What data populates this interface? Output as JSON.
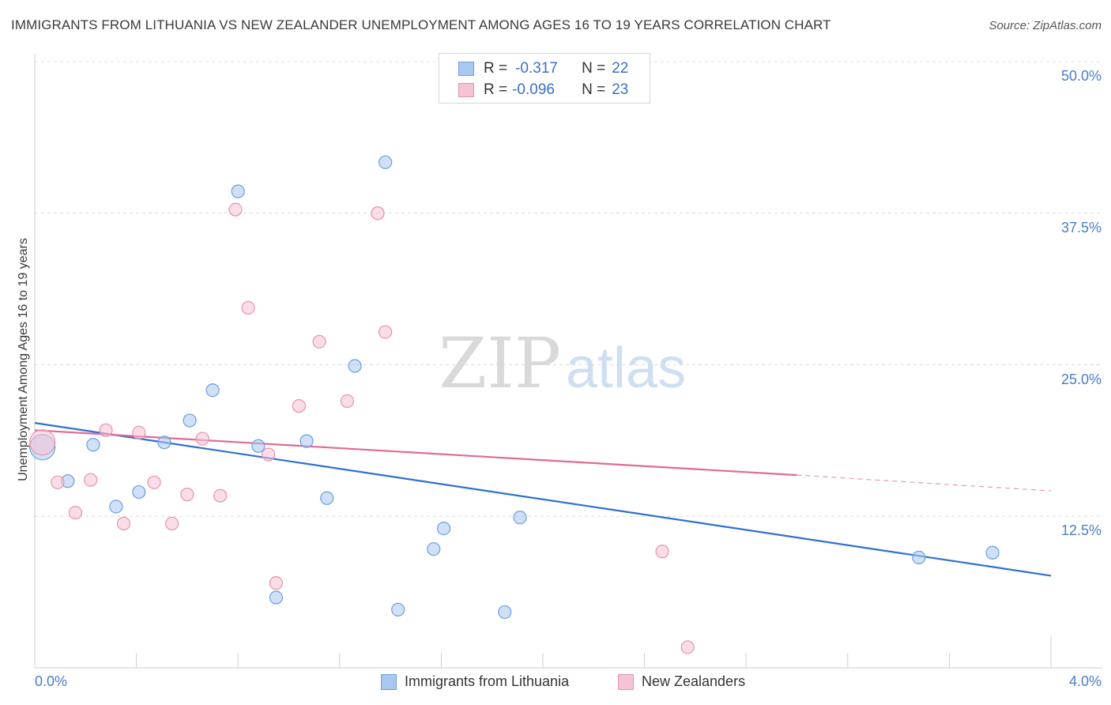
{
  "chart_data": {
    "type": "scatter",
    "title": "IMMIGRANTS FROM LITHUANIA VS NEW ZEALANDER UNEMPLOYMENT AMONG AGES 16 TO 19 YEARS CORRELATION CHART",
    "source": "Source: ZipAtlas.com",
    "ylabel": "Unemployment Among Ages 16 to 19 years",
    "xlabel": "",
    "xlim": [
      0,
      4.0
    ],
    "ylim": [
      0,
      50
    ],
    "y_ticks": [
      {
        "value": 12.5,
        "label": "12.5%"
      },
      {
        "value": 25.0,
        "label": "25.0%"
      },
      {
        "value": 37.5,
        "label": "37.5%"
      },
      {
        "value": 50.0,
        "label": "50.0%"
      }
    ],
    "x_tick_labels": {
      "min": "0.0%",
      "max": "4.0%"
    },
    "x_minor_ticks": [
      0.4,
      0.8,
      1.2,
      1.6,
      2.0,
      2.4,
      2.8,
      3.2,
      3.6
    ],
    "grid": true,
    "watermark": {
      "a": "ZIP",
      "b": "atlas"
    },
    "series": [
      {
        "name": "Immigrants from Lithuania",
        "color": "#a9c8f0",
        "stroke": "#6a9ee0",
        "line_color": "#2f6fd0",
        "r_label": "R =",
        "r_value": "-0.317",
        "n_label": "N =",
        "n_value": "22",
        "trend": {
          "x0": 0.0,
          "y0": 20.2,
          "x1": 4.0,
          "y1": 7.6
        },
        "points": [
          {
            "x": 0.03,
            "y": 18.2,
            "big": true
          },
          {
            "x": 0.13,
            "y": 15.4
          },
          {
            "x": 0.23,
            "y": 18.4
          },
          {
            "x": 0.32,
            "y": 13.3
          },
          {
            "x": 0.41,
            "y": 14.5
          },
          {
            "x": 0.51,
            "y": 18.6
          },
          {
            "x": 0.61,
            "y": 20.4
          },
          {
            "x": 0.7,
            "y": 22.9
          },
          {
            "x": 0.8,
            "y": 39.3
          },
          {
            "x": 0.88,
            "y": 18.3
          },
          {
            "x": 0.95,
            "y": 5.8
          },
          {
            "x": 1.07,
            "y": 18.7
          },
          {
            "x": 1.15,
            "y": 14.0
          },
          {
            "x": 1.26,
            "y": 24.9
          },
          {
            "x": 1.38,
            "y": 41.7
          },
          {
            "x": 1.43,
            "y": 4.8
          },
          {
            "x": 1.57,
            "y": 9.8
          },
          {
            "x": 1.61,
            "y": 11.5
          },
          {
            "x": 1.85,
            "y": 4.6
          },
          {
            "x": 1.91,
            "y": 12.4
          },
          {
            "x": 3.48,
            "y": 9.1
          },
          {
            "x": 3.77,
            "y": 9.5
          }
        ]
      },
      {
        "name": "New Zealanders",
        "color": "#f6c3d3",
        "stroke": "#e891ad",
        "line_color": "#e06a95",
        "r_label": "R =",
        "r_value": "-0.096",
        "n_label": "N =",
        "n_value": "23",
        "trend": {
          "x0": 0.0,
          "y0": 19.6,
          "x1": 3.0,
          "y1": 15.9
        },
        "trend_dashed_to": {
          "x": 4.0,
          "y": 14.6
        },
        "points": [
          {
            "x": 0.03,
            "y": 18.6,
            "big": true
          },
          {
            "x": 0.09,
            "y": 15.3
          },
          {
            "x": 0.16,
            "y": 12.8
          },
          {
            "x": 0.22,
            "y": 15.5
          },
          {
            "x": 0.28,
            "y": 19.6
          },
          {
            "x": 0.35,
            "y": 11.9
          },
          {
            "x": 0.41,
            "y": 19.4
          },
          {
            "x": 0.47,
            "y": 15.3
          },
          {
            "x": 0.54,
            "y": 11.9
          },
          {
            "x": 0.6,
            "y": 14.3
          },
          {
            "x": 0.66,
            "y": 18.9
          },
          {
            "x": 0.73,
            "y": 14.2
          },
          {
            "x": 0.79,
            "y": 37.8
          },
          {
            "x": 0.84,
            "y": 29.7
          },
          {
            "x": 0.92,
            "y": 17.6
          },
          {
            "x": 0.95,
            "y": 7.0
          },
          {
            "x": 1.04,
            "y": 21.6
          },
          {
            "x": 1.12,
            "y": 26.9
          },
          {
            "x": 1.23,
            "y": 22.0
          },
          {
            "x": 1.35,
            "y": 37.5
          },
          {
            "x": 1.38,
            "y": 27.7
          },
          {
            "x": 2.47,
            "y": 9.6
          },
          {
            "x": 2.57,
            "y": 1.7
          }
        ]
      }
    ]
  }
}
